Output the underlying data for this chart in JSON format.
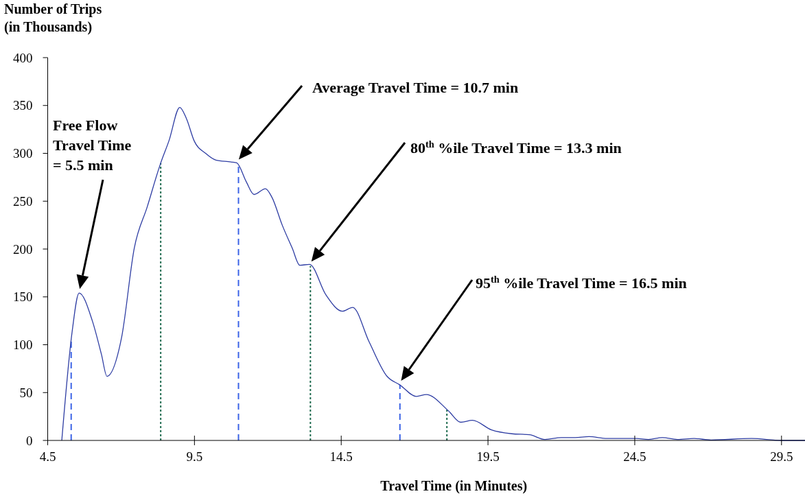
{
  "chart_data": {
    "type": "line",
    "xlabel": "Travel Time (in Minutes)",
    "ylabel": "Number of Trips (in Thousands)",
    "xlim": [
      4.5,
      30.3
    ],
    "xticks": [
      4.5,
      9.5,
      14.5,
      19.5,
      24.5,
      29.5
    ],
    "ylim": [
      0,
      400
    ],
    "yticks": [
      0,
      50,
      100,
      150,
      200,
      250,
      300,
      350,
      400
    ],
    "grid": false,
    "marker": "none",
    "line_style": "solid",
    "series": [
      {
        "color": "#2e3da3",
        "x": [
          4.98,
          5.33,
          5.57,
          6.02,
          6.33,
          6.52,
          7.02,
          7.45,
          7.89,
          8.34,
          8.63,
          9.0,
          9.23,
          9.49,
          9.88,
          10.23,
          10.75,
          10.94,
          11.27,
          11.53,
          11.92,
          12.14,
          12.49,
          12.83,
          13.09,
          13.42,
          13.98,
          14.54,
          14.89,
          15.45,
          16.06,
          16.5,
          17.06,
          17.4,
          18.15,
          18.57,
          18.97,
          19.62,
          20.31,
          20.91,
          21.44,
          22.0,
          22.47,
          22.94,
          23.56,
          24.55,
          24.97,
          25.44,
          25.95,
          26.52,
          27.1,
          28.48,
          29.5,
          30.3
        ],
        "values": [
          0,
          113,
          154,
          125,
          90,
          67,
          108,
          201,
          244,
          289,
          313,
          348,
          336,
          313,
          300,
          293,
          291,
          290,
          270,
          257,
          263,
          254,
          225,
          201,
          183,
          184,
          152,
          135,
          139,
          103,
          67,
          58,
          46,
          48,
          31,
          19,
          21,
          11,
          7,
          6,
          1,
          3,
          3,
          4,
          2,
          2,
          1,
          3,
          1,
          2,
          0.5,
          2,
          0,
          0
        ]
      }
    ],
    "ref_lines": [
      {
        "axis": "x",
        "value": 5.3,
        "color": "#3b63e6",
        "line_style": "dashed"
      },
      {
        "axis": "x",
        "value": 8.35,
        "color": "#1e6b4f",
        "line_style": "dotted"
      },
      {
        "axis": "x",
        "value": 11.0,
        "color": "#3b63e6",
        "line_style": "dashed"
      },
      {
        "axis": "x",
        "value": 13.45,
        "color": "#1e6b4f",
        "line_style": "dotted"
      },
      {
        "axis": "x",
        "value": 16.5,
        "color": "#3b63e6",
        "line_style": "dashed"
      },
      {
        "axis": "x",
        "value": 18.1,
        "color": "#1e6b4f",
        "line_style": "dotted"
      }
    ],
    "annotations": [
      "Free Flow Travel Time = 5.5 min",
      "Average Travel Time = 10.7 min",
      "80$^{th}$ %ile Travel Time = 13.3 min",
      "95$^{th}$ %ile Travel Time = 16.5 min"
    ]
  }
}
